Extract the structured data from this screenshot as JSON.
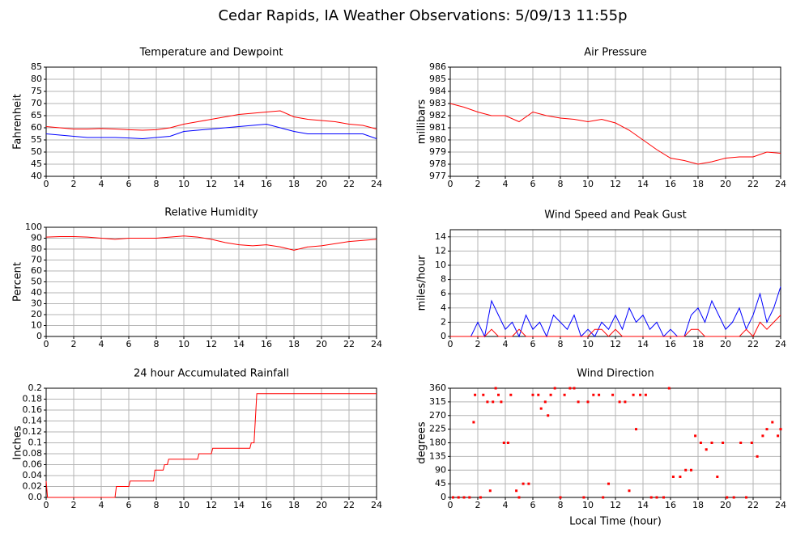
{
  "title": "Cedar Rapids, IA Weather Observations: 5/09/13 11:55p",
  "chart_data": [
    {
      "type": "line",
      "title": "Temperature and Dewpoint",
      "ylabel": "Fahrenheit",
      "grid": true,
      "x": [
        0,
        1,
        2,
        3,
        4,
        5,
        6,
        7,
        8,
        9,
        10,
        11,
        12,
        13,
        14,
        15,
        16,
        17,
        18,
        19,
        20,
        21,
        22,
        23,
        24
      ],
      "series": [
        {
          "color": "#ff0000",
          "values": [
            60.5,
            60,
            59.5,
            59.5,
            59.7,
            59.5,
            59.2,
            59,
            59.2,
            60,
            61.5,
            62.5,
            63.5,
            64.5,
            65.5,
            66,
            66.5,
            67,
            64.5,
            63.5,
            63,
            62.5,
            61.5,
            61,
            59.5
          ]
        },
        {
          "color": "#0000ff",
          "values": [
            57.5,
            57,
            56.5,
            56,
            56,
            56,
            55.8,
            55.5,
            56,
            56.5,
            58.5,
            59,
            59.5,
            60,
            60.5,
            61,
            61.5,
            60,
            58.5,
            57.5,
            57.5,
            57.5,
            57.5,
            57.5,
            55.5
          ]
        }
      ],
      "xlim": [
        0,
        24
      ],
      "xticks": [
        0,
        2,
        4,
        6,
        8,
        10,
        12,
        14,
        16,
        18,
        20,
        22,
        24
      ],
      "ylim": [
        40,
        85
      ],
      "yticks": [
        40,
        45,
        50,
        55,
        60,
        65,
        70,
        75,
        80,
        85
      ]
    },
    {
      "type": "line",
      "title": "Air Pressure",
      "ylabel": "millibars",
      "grid": true,
      "x": [
        0,
        1,
        2,
        3,
        4,
        5,
        6,
        7,
        8,
        9,
        10,
        11,
        12,
        13,
        14,
        15,
        16,
        17,
        18,
        19,
        20,
        21,
        22,
        23,
        24
      ],
      "series": [
        {
          "color": "#ff0000",
          "values": [
            983,
            982.7,
            982.3,
            982,
            982,
            981.5,
            982.3,
            982,
            981.8,
            981.7,
            981.5,
            981.7,
            981.4,
            980.8,
            980,
            979.2,
            978.5,
            978.3,
            978,
            978.2,
            978.5,
            978.6,
            978.6,
            979,
            978.9
          ]
        }
      ],
      "xlim": [
        0,
        24
      ],
      "xticks": [
        0,
        2,
        4,
        6,
        8,
        10,
        12,
        14,
        16,
        18,
        20,
        22,
        24
      ],
      "ylim": [
        977,
        986
      ],
      "yticks": [
        977,
        978,
        979,
        980,
        981,
        982,
        983,
        984,
        985,
        986
      ]
    },
    {
      "type": "line",
      "title": "Relative Humidity",
      "ylabel": "Percent",
      "grid": true,
      "x": [
        0,
        1,
        2,
        3,
        4,
        5,
        6,
        7,
        8,
        9,
        10,
        11,
        12,
        13,
        14,
        15,
        16,
        17,
        18,
        19,
        20,
        21,
        22,
        23,
        24
      ],
      "series": [
        {
          "color": "#ff0000",
          "values": [
            91,
            91.5,
            91.5,
            91,
            90,
            89,
            90,
            90,
            90,
            91,
            92,
            91,
            89,
            86,
            84,
            83,
            84,
            82,
            79,
            82,
            83,
            85,
            87,
            88,
            89
          ]
        }
      ],
      "xlim": [
        0,
        24
      ],
      "xticks": [
        0,
        2,
        4,
        6,
        8,
        10,
        12,
        14,
        16,
        18,
        20,
        22,
        24
      ],
      "ylim": [
        0,
        100
      ],
      "yticks": [
        0,
        10,
        20,
        30,
        40,
        50,
        60,
        70,
        80,
        90,
        100
      ]
    },
    {
      "type": "line",
      "title": "Wind Speed and Peak Gust",
      "ylabel": "miles/hour",
      "grid": true,
      "x": [
        0,
        0.5,
        1,
        1.5,
        2,
        2.5,
        3,
        3.5,
        4,
        4.5,
        5,
        5.5,
        6,
        6.5,
        7,
        7.5,
        8,
        8.5,
        9,
        9.5,
        10,
        10.5,
        11,
        11.5,
        12,
        12.5,
        13,
        13.5,
        14,
        14.5,
        15,
        15.5,
        16,
        16.5,
        17,
        17.5,
        18,
        18.5,
        19,
        19.5,
        20,
        20.5,
        21,
        21.5,
        22,
        22.5,
        23,
        23.5,
        24
      ],
      "series": [
        {
          "color": "#0000ff",
          "values": [
            0,
            0,
            0,
            0,
            2,
            0,
            5,
            3,
            1,
            2,
            0,
            3,
            1,
            2,
            0,
            3,
            2,
            1,
            3,
            0,
            1,
            0,
            2,
            1,
            3,
            1,
            4,
            2,
            3,
            1,
            2,
            0,
            1,
            0,
            0,
            3,
            4,
            2,
            5,
            3,
            1,
            2,
            4,
            1,
            3,
            6,
            2,
            4,
            7
          ]
        },
        {
          "color": "#ff0000",
          "values": [
            0,
            0,
            0,
            0,
            0,
            0,
            1,
            0,
            0,
            0,
            1,
            0,
            0,
            0,
            0,
            0,
            0,
            0,
            0,
            0,
            0,
            1,
            1,
            0,
            1,
            0,
            0,
            0,
            0,
            0,
            0,
            0,
            0,
            0,
            0,
            1,
            1,
            0,
            0,
            0,
            0,
            0,
            0,
            1,
            0,
            2,
            1,
            2,
            3
          ]
        }
      ],
      "xlim": [
        0,
        24
      ],
      "xticks": [
        0,
        2,
        4,
        6,
        8,
        10,
        12,
        14,
        16,
        18,
        20,
        22,
        24
      ],
      "ylim": [
        0,
        15
      ],
      "yticks": [
        0,
        2,
        4,
        6,
        8,
        10,
        12,
        14
      ]
    },
    {
      "type": "line",
      "title": "24 hour Accumulated Rainfall",
      "ylabel": "Inches",
      "grid": true,
      "x": [
        0,
        0.1,
        5,
        5.1,
        6,
        6.1,
        7.8,
        7.9,
        8.5,
        8.6,
        8.8,
        8.9,
        11,
        11.1,
        12,
        12.1,
        14.8,
        14.9,
        15.1,
        15.3,
        24
      ],
      "series": [
        {
          "color": "#ff0000",
          "values": [
            0.03,
            0,
            0,
            0.02,
            0.02,
            0.03,
            0.03,
            0.05,
            0.05,
            0.06,
            0.06,
            0.07,
            0.07,
            0.08,
            0.08,
            0.09,
            0.09,
            0.1,
            0.1,
            0.19,
            0.19
          ]
        }
      ],
      "xlim": [
        0,
        24
      ],
      "xticks": [
        0,
        2,
        4,
        6,
        8,
        10,
        12,
        14,
        16,
        18,
        20,
        22,
        24
      ],
      "ylim": [
        0,
        0.2
      ],
      "yticks": [
        {
          "value": 0,
          "label": "0.0"
        },
        0.02,
        0.04,
        0.06,
        0.08,
        0.1,
        0.12,
        0.14,
        0.16,
        0.18,
        0.2
      ]
    },
    {
      "type": "scatter",
      "title": "Wind Direction",
      "ylabel": "degrees",
      "xlabel": "Local Time (hour)",
      "grid": true,
      "x": [
        0.2,
        0.6,
        1.0,
        1.4,
        1.7,
        1.8,
        2.2,
        2.4,
        2.7,
        2.9,
        3.1,
        3.3,
        3.5,
        3.7,
        3.9,
        4.2,
        4.4,
        4.8,
        5.0,
        5.3,
        5.7,
        6.0,
        6.4,
        6.6,
        6.9,
        7.1,
        7.3,
        7.6,
        8.0,
        8.3,
        8.7,
        9.0,
        9.3,
        9.7,
        10.0,
        10.4,
        10.8,
        11.1,
        11.5,
        11.8,
        12.3,
        12.7,
        13.0,
        13.3,
        13.5,
        13.8,
        14.2,
        14.6,
        15.0,
        15.5,
        15.9,
        16.2,
        16.7,
        17.1,
        17.5,
        17.8,
        18.2,
        18.6,
        19.0,
        19.4,
        19.8,
        20.1,
        20.6,
        21.1,
        21.5,
        21.9,
        22.3,
        22.7,
        23.0,
        23.4,
        23.8,
        24.0
      ],
      "series": [
        {
          "color": "#ff0000",
          "values": [
            0,
            0,
            0,
            0,
            248,
            338,
            0,
            338,
            315,
            22,
            315,
            360,
            338,
            315,
            180,
            180,
            338,
            22,
            0,
            45,
            45,
            338,
            338,
            293,
            315,
            270,
            338,
            360,
            0,
            338,
            360,
            360,
            315,
            0,
            315,
            338,
            338,
            0,
            45,
            338,
            315,
            315,
            22,
            338,
            225,
            338,
            338,
            0,
            0,
            0,
            360,
            68,
            68,
            90,
            90,
            203,
            180,
            158,
            180,
            68,
            180,
            0,
            0,
            180,
            0,
            180,
            135,
            203,
            225,
            248,
            203,
            225
          ]
        }
      ],
      "xlim": [
        0,
        24
      ],
      "xticks": [
        0,
        2,
        4,
        6,
        8,
        10,
        12,
        14,
        16,
        18,
        20,
        22,
        24
      ],
      "ylim": [
        0,
        360
      ],
      "yticks": [
        0,
        45,
        90,
        135,
        180,
        225,
        270,
        315,
        360
      ]
    }
  ]
}
